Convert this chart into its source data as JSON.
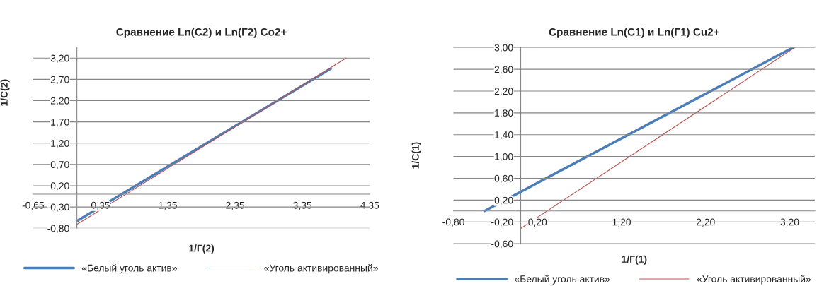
{
  "chart_data": [
    {
      "type": "line",
      "title": "Сравнение Ln(C2) и Ln(Г2) Co2+",
      "xlabel": "1/Г(2)",
      "ylabel": "1/C(2)",
      "series": [
        {
          "name": "«Белый уголь актив»",
          "color": "#4a7ebb",
          "x": [
            0.0,
            3.77
          ],
          "values": [
            -0.63,
            2.95
          ]
        },
        {
          "name": "«Уголь активированный»",
          "color": "#c0504d",
          "x": [
            0.0,
            4.0
          ],
          "values": [
            -0.71,
            3.2
          ]
        }
      ],
      "xlim": [
        -0.65,
        4.35
      ],
      "xticks": [
        {
          "value": -0.65,
          "label": "-0,65"
        },
        {
          "value": 0.35,
          "label": "0,35"
        },
        {
          "value": 1.35,
          "label": "1,35"
        },
        {
          "value": 2.35,
          "label": "2,35"
        },
        {
          "value": 3.35,
          "label": "3,35"
        },
        {
          "value": 4.35,
          "label": "4,35"
        }
      ],
      "ylim": [
        -0.8,
        3.45
      ],
      "yticks": [
        {
          "value": -0.8,
          "label": "-0,80"
        },
        {
          "value": -0.3,
          "label": "-0,30"
        },
        {
          "value": 0.2,
          "label": "0,20"
        },
        {
          "value": 0.7,
          "label": "0,70"
        },
        {
          "value": 1.2,
          "label": "1,20"
        },
        {
          "value": 1.7,
          "label": "1,70"
        },
        {
          "value": 2.2,
          "label": "2,20"
        },
        {
          "value": 2.7,
          "label": "2,70"
        },
        {
          "value": 3.2,
          "label": "3,20"
        }
      ],
      "grid": "y",
      "legend": "bottom"
    },
    {
      "type": "line",
      "title": "Сравнение Ln(C1) и Ln(Г1) Cu2+",
      "xlabel": "1/Г(1)",
      "ylabel": "1/C(1)",
      "series": [
        {
          "name": "«Белый уголь актив»",
          "color": "#4a7ebb",
          "x": [
            -0.43,
            3.24
          ],
          "values": [
            0.0,
            3.0
          ]
        },
        {
          "name": "«Уголь активированный»",
          "color": "#c0504d",
          "x": [
            0.0,
            3.26
          ],
          "values": [
            -0.32,
            3.0
          ]
        }
      ],
      "xlim": [
        -0.8,
        3.5
      ],
      "xticks": [
        {
          "value": -0.8,
          "label": "-0,80"
        },
        {
          "value": 0.2,
          "label": "0,20"
        },
        {
          "value": 1.2,
          "label": "1,20"
        },
        {
          "value": 2.2,
          "label": "2,20"
        },
        {
          "value": 3.2,
          "label": "3,20"
        }
      ],
      "ylim": [
        -0.6,
        3.0
      ],
      "yticks": [
        {
          "value": -0.6,
          "label": "-0,60"
        },
        {
          "value": -0.2,
          "label": "-0,20"
        },
        {
          "value": 0.2,
          "label": "0,20"
        },
        {
          "value": 0.6,
          "label": "0,60"
        },
        {
          "value": 1.0,
          "label": "1,00"
        },
        {
          "value": 1.4,
          "label": "1,40"
        },
        {
          "value": 1.8,
          "label": "1,80"
        },
        {
          "value": 2.2,
          "label": "2,20"
        },
        {
          "value": 2.6,
          "label": "2,60"
        },
        {
          "value": 3.0,
          "label": "3,00"
        }
      ],
      "grid": "y",
      "legend": "bottom"
    }
  ]
}
